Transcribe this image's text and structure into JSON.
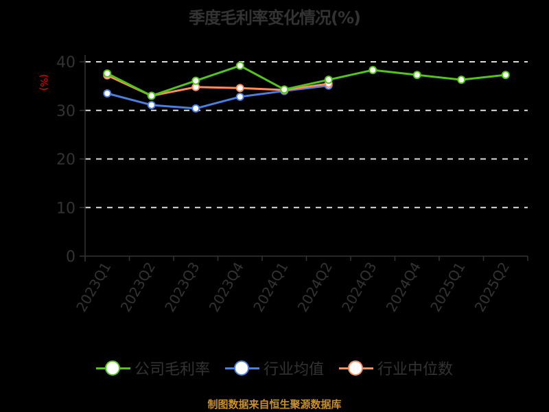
{
  "title": "季度毛利率变化情况(%)",
  "y_unit_label": "(%)",
  "source": "制图数据来自恒生聚源数据库",
  "colors": {
    "company": "#52c41a",
    "industry_avg": "#4a7fe0",
    "industry_median": "#ff8c5a",
    "axis_text": "#333333",
    "unit_label": "#ff0000",
    "source": "#c8902a",
    "grid": "#dddddd"
  },
  "legend": [
    {
      "label": "公司毛利率",
      "color": "#52c41a"
    },
    {
      "label": "行业均值",
      "color": "#4a7fe0"
    },
    {
      "label": "行业中位数",
      "color": "#ff8c5a"
    }
  ],
  "chart_data": {
    "type": "line",
    "title": "季度毛利率变化情况(%)",
    "xlabel": "",
    "ylabel": "(%)",
    "ylim": [
      0,
      40
    ],
    "yticks": [
      0,
      10,
      20,
      30,
      40
    ],
    "grid": true,
    "legend_position": "bottom",
    "categories": [
      "2023Q1",
      "2023Q2",
      "2023Q3",
      "2023Q4",
      "2024Q1",
      "2024Q2",
      "2024Q3",
      "2024Q4",
      "2025Q1",
      "2025Q2"
    ],
    "series": [
      {
        "name": "公司毛利率",
        "values": [
          37.6,
          33.0,
          36.1,
          39.2,
          34.3,
          36.3,
          38.3,
          37.3,
          36.3,
          37.3
        ]
      },
      {
        "name": "行业均值",
        "values": [
          33.5,
          31.1,
          30.4,
          32.8,
          34.0,
          35.1,
          null,
          null,
          null,
          null
        ]
      },
      {
        "name": "行业中位数",
        "values": [
          37.2,
          33.0,
          34.8,
          34.6,
          34.2,
          35.5,
          null,
          null,
          null,
          null
        ]
      }
    ]
  }
}
